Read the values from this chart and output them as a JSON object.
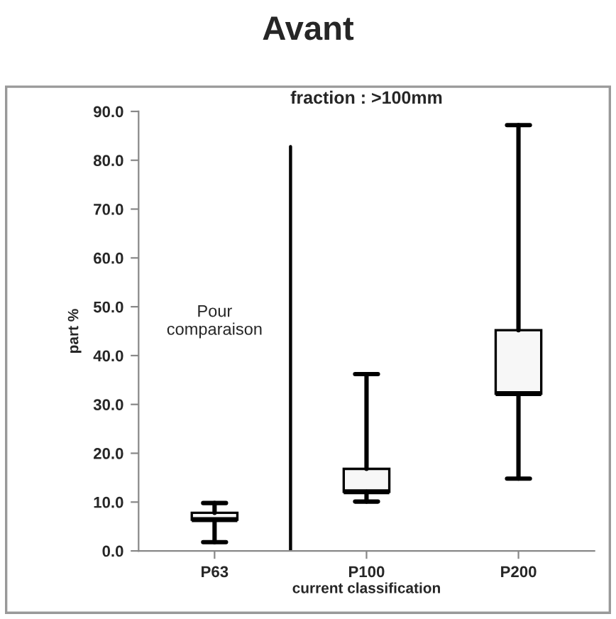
{
  "chart_data": {
    "type": "box",
    "title": "Avant",
    "subtitle": "fraction : >100mm",
    "xlabel": "current classification",
    "ylabel": "part %",
    "categories": [
      "P63",
      "P100",
      "P200"
    ],
    "boxes": [
      {
        "low": 1.8,
        "q1": 6.4,
        "median": 6.4,
        "q3": 7.8,
        "high": 9.8
      },
      {
        "low": 10.1,
        "q1": 12.1,
        "median": 12.1,
        "q3": 16.8,
        "high": 36.2
      },
      {
        "low": 14.8,
        "q1": 32.2,
        "median": 32.2,
        "q3": 45.2,
        "high": 87.2
      }
    ],
    "color": "#f7f7f7",
    "ylim": [
      0,
      90
    ],
    "yticks": [
      {
        "value": 0,
        "label": "0.0"
      },
      {
        "value": 10,
        "label": "10.0"
      },
      {
        "value": 20,
        "label": "20.0"
      },
      {
        "value": 30,
        "label": "30.0"
      },
      {
        "value": 40,
        "label": "40.0"
      },
      {
        "value": 50,
        "label": "50.0"
      },
      {
        "value": 60,
        "label": "60.0"
      },
      {
        "value": 70,
        "label": "70.0"
      },
      {
        "value": 80,
        "label": "80.0"
      },
      {
        "value": 90,
        "label": "90.0"
      }
    ],
    "annotations": [
      "Pour\ncomparaison"
    ],
    "grid": false,
    "legend": false
  }
}
